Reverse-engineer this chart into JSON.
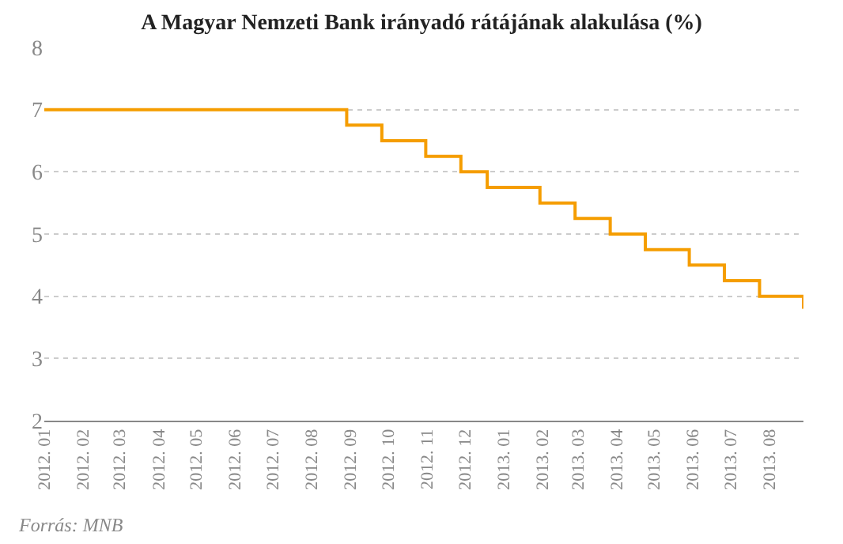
{
  "chart_data": {
    "type": "step",
    "title": "A Magyar Nemzeti Bank irányadó rátájának alakulása (%)",
    "x": [
      "2012-01-01",
      "2012-08-29",
      "2012-09-26",
      "2012-10-31",
      "2012-11-28",
      "2012-12-19",
      "2013-01-30",
      "2013-02-27",
      "2013-03-27",
      "2013-04-24",
      "2013-05-29",
      "2013-06-26",
      "2013-07-24",
      "2013-08-28"
    ],
    "series": [
      {
        "color": "#f59d00",
        "values": [
          7,
          6.75,
          6.5,
          6.25,
          6,
          5.75,
          5.5,
          5.25,
          5,
          4.75,
          4.5,
          4.25,
          4,
          3.8
        ]
      }
    ],
    "xlim": [
      "2012-01-01",
      "2013-08-28"
    ],
    "xticks": [
      {
        "value": "2012-01-01",
        "label": "2012. 01"
      },
      {
        "value": "2012-02-01",
        "label": "2012. 02"
      },
      {
        "value": "2012-03-01",
        "label": "2012. 03"
      },
      {
        "value": "2012-04-01",
        "label": "2012. 04"
      },
      {
        "value": "2012-05-01",
        "label": "2012. 05"
      },
      {
        "value": "2012-06-01",
        "label": "2012. 06"
      },
      {
        "value": "2012-07-01",
        "label": "2012. 07"
      },
      {
        "value": "2012-08-01",
        "label": "2012. 08"
      },
      {
        "value": "2012-09-01",
        "label": "2012. 09"
      },
      {
        "value": "2012-10-01",
        "label": "2012. 10"
      },
      {
        "value": "2012-11-01",
        "label": "2012. 11"
      },
      {
        "value": "2012-12-01",
        "label": "2012. 12"
      },
      {
        "value": "2013-01-01",
        "label": "2013. 01"
      },
      {
        "value": "2013-02-01",
        "label": "2013. 02"
      },
      {
        "value": "2013-03-01",
        "label": "2013. 03"
      },
      {
        "value": "2013-04-01",
        "label": "2013. 04"
      },
      {
        "value": "2013-05-01",
        "label": "2013. 05"
      },
      {
        "value": "2013-06-01",
        "label": "2013. 06"
      },
      {
        "value": "2013-07-01",
        "label": "2013. 07"
      },
      {
        "value": "2013-08-01",
        "label": "2013. 08"
      }
    ],
    "ylim": [
      2,
      8
    ],
    "yticks": [
      2,
      3,
      4,
      5,
      6,
      7,
      8
    ],
    "grid": "y",
    "marker": "none",
    "line_style": "solid",
    "annotations": [
      "Forrás: MNB"
    ]
  }
}
